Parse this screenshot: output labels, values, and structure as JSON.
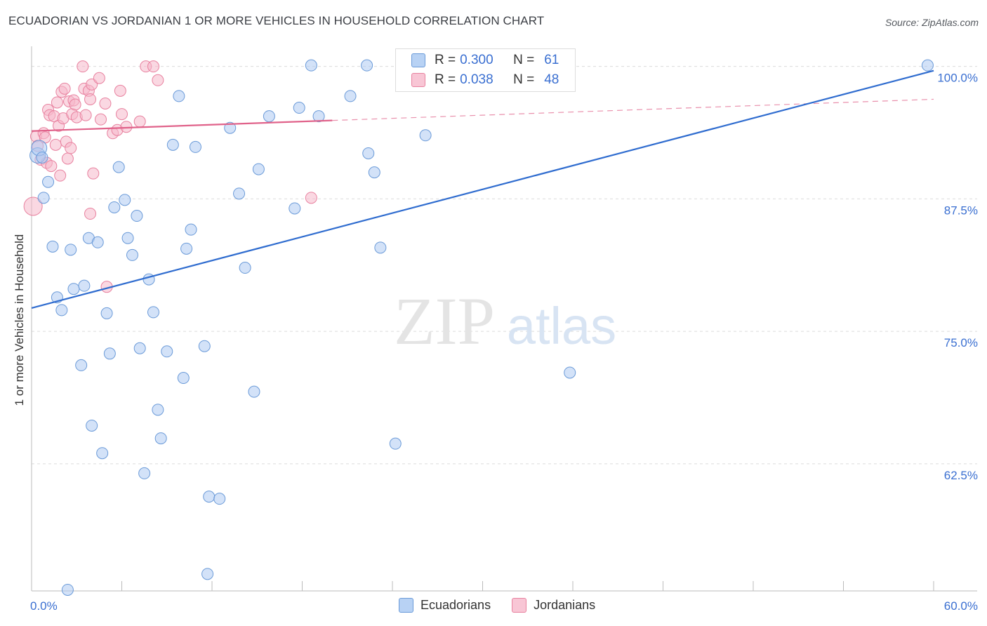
{
  "header": {
    "title": "ECUADORIAN VS JORDANIAN 1 OR MORE VEHICLES IN HOUSEHOLD CORRELATION CHART",
    "source": "Source: ZipAtlas.com"
  },
  "watermark": {
    "zip": "ZIP",
    "atlas": "atlas"
  },
  "legend": {
    "r_label": "R =",
    "n_label": "N =",
    "ecuadorians": {
      "r": "0.300",
      "n": "61"
    },
    "jordanians": {
      "r": "0.038",
      "n": "48"
    }
  },
  "bottom_legend": {
    "ecuadorians": "Ecuadorians",
    "jordanians": "Jordanians"
  },
  "colors": {
    "ecuadorians_fill": "#aecbf2",
    "ecuadorians_stroke": "#6a9ad8",
    "ecuadorians_line": "#2f6ccf",
    "jordanians_fill": "#f5b8cb",
    "jordanians_stroke": "#e8819f",
    "jordanians_line": "#e0628a",
    "tick_label": "#3a6fd1"
  },
  "chart_data": {
    "type": "scatter",
    "title": "ECUADORIAN VS JORDANIAN 1 OR MORE VEHICLES IN HOUSEHOLD CORRELATION CHART",
    "xlabel": "",
    "ylabel": "1 or more Vehicles in Household",
    "xlim": [
      0,
      60
    ],
    "ylim": [
      50.5,
      101.5
    ],
    "x_tick_labels": [
      "0.0%",
      "60.0%"
    ],
    "y_ticks": [
      62.5,
      75.0,
      87.5,
      100.0
    ],
    "y_tick_labels": [
      "62.5%",
      "75.0%",
      "87.5%",
      "100.0%"
    ],
    "series": [
      {
        "name": "Ecuadorians",
        "trend": {
          "x": [
            0,
            60
          ],
          "y": [
            77.2,
            99.6
          ]
        },
        "points": [
          {
            "x": 0.4,
            "y": 91.6
          },
          {
            "x": 0.5,
            "y": 92.3
          },
          {
            "x": 0.7,
            "y": 91.4
          },
          {
            "x": 0.8,
            "y": 87.6
          },
          {
            "x": 1.1,
            "y": 89.1
          },
          {
            "x": 1.4,
            "y": 83.0
          },
          {
            "x": 1.7,
            "y": 78.2
          },
          {
            "x": 2.0,
            "y": 77.0
          },
          {
            "x": 2.4,
            "y": 50.6
          },
          {
            "x": 2.6,
            "y": 82.7
          },
          {
            "x": 2.8,
            "y": 79.0
          },
          {
            "x": 3.3,
            "y": 71.8
          },
          {
            "x": 3.5,
            "y": 79.3
          },
          {
            "x": 3.8,
            "y": 83.8
          },
          {
            "x": 4.0,
            "y": 66.1
          },
          {
            "x": 4.4,
            "y": 83.4
          },
          {
            "x": 4.7,
            "y": 63.5
          },
          {
            "x": 5.0,
            "y": 76.7
          },
          {
            "x": 5.2,
            "y": 72.9
          },
          {
            "x": 5.5,
            "y": 86.7
          },
          {
            "x": 5.8,
            "y": 90.5
          },
          {
            "x": 6.2,
            "y": 87.4
          },
          {
            "x": 6.4,
            "y": 83.8
          },
          {
            "x": 6.7,
            "y": 82.2
          },
          {
            "x": 7.0,
            "y": 85.9
          },
          {
            "x": 7.2,
            "y": 73.4
          },
          {
            "x": 7.5,
            "y": 61.6
          },
          {
            "x": 7.8,
            "y": 79.9
          },
          {
            "x": 8.1,
            "y": 76.8
          },
          {
            "x": 8.4,
            "y": 67.6
          },
          {
            "x": 8.6,
            "y": 64.9
          },
          {
            "x": 9.0,
            "y": 73.1
          },
          {
            "x": 9.4,
            "y": 92.6
          },
          {
            "x": 9.8,
            "y": 97.2
          },
          {
            "x": 10.1,
            "y": 70.6
          },
          {
            "x": 10.3,
            "y": 82.8
          },
          {
            "x": 10.6,
            "y": 84.6
          },
          {
            "x": 10.9,
            "y": 92.4
          },
          {
            "x": 11.5,
            "y": 73.6
          },
          {
            "x": 11.8,
            "y": 59.4
          },
          {
            "x": 12.5,
            "y": 59.2
          },
          {
            "x": 11.7,
            "y": 52.1
          },
          {
            "x": 13.2,
            "y": 94.2
          },
          {
            "x": 13.8,
            "y": 88.0
          },
          {
            "x": 14.2,
            "y": 81.0
          },
          {
            "x": 14.8,
            "y": 69.3
          },
          {
            "x": 15.1,
            "y": 90.3
          },
          {
            "x": 15.8,
            "y": 95.3
          },
          {
            "x": 17.5,
            "y": 86.6
          },
          {
            "x": 17.8,
            "y": 96.1
          },
          {
            "x": 18.6,
            "y": 100.1
          },
          {
            "x": 19.1,
            "y": 95.3
          },
          {
            "x": 21.2,
            "y": 97.2
          },
          {
            "x": 22.4,
            "y": 91.8
          },
          {
            "x": 22.3,
            "y": 100.1
          },
          {
            "x": 22.8,
            "y": 90.0
          },
          {
            "x": 23.2,
            "y": 82.9
          },
          {
            "x": 24.2,
            "y": 64.4
          },
          {
            "x": 26.2,
            "y": 93.5
          },
          {
            "x": 35.8,
            "y": 71.1
          },
          {
            "x": 59.6,
            "y": 100.1
          }
        ]
      },
      {
        "name": "Jordanians",
        "trend": {
          "x": [
            0,
            20
          ],
          "y": [
            93.9,
            94.9
          ]
        },
        "trend_dashed": {
          "x": [
            20,
            60
          ],
          "y": [
            94.9,
            96.9
          ]
        },
        "points": [
          {
            "x": 0.1,
            "y": 86.8
          },
          {
            "x": 0.3,
            "y": 93.4
          },
          {
            "x": 0.4,
            "y": 92.5
          },
          {
            "x": 0.6,
            "y": 91.2
          },
          {
            "x": 0.8,
            "y": 93.7
          },
          {
            "x": 0.9,
            "y": 93.3
          },
          {
            "x": 1.0,
            "y": 90.9
          },
          {
            "x": 1.1,
            "y": 95.9
          },
          {
            "x": 1.2,
            "y": 95.4
          },
          {
            "x": 1.3,
            "y": 90.6
          },
          {
            "x": 1.5,
            "y": 95.3
          },
          {
            "x": 1.6,
            "y": 92.6
          },
          {
            "x": 1.7,
            "y": 96.6
          },
          {
            "x": 1.8,
            "y": 94.4
          },
          {
            "x": 1.9,
            "y": 89.7
          },
          {
            "x": 2.0,
            "y": 97.6
          },
          {
            "x": 2.1,
            "y": 95.1
          },
          {
            "x": 2.2,
            "y": 97.9
          },
          {
            "x": 2.3,
            "y": 92.9
          },
          {
            "x": 2.4,
            "y": 91.3
          },
          {
            "x": 2.5,
            "y": 96.7
          },
          {
            "x": 2.6,
            "y": 92.3
          },
          {
            "x": 2.7,
            "y": 95.5
          },
          {
            "x": 2.8,
            "y": 96.8
          },
          {
            "x": 2.9,
            "y": 96.4
          },
          {
            "x": 3.0,
            "y": 95.2
          },
          {
            "x": 3.4,
            "y": 100.0
          },
          {
            "x": 3.5,
            "y": 97.9
          },
          {
            "x": 3.6,
            "y": 95.4
          },
          {
            "x": 3.8,
            "y": 97.7
          },
          {
            "x": 3.9,
            "y": 96.9
          },
          {
            "x": 4.0,
            "y": 98.3
          },
          {
            "x": 4.1,
            "y": 89.9
          },
          {
            "x": 3.9,
            "y": 86.1
          },
          {
            "x": 4.5,
            "y": 98.9
          },
          {
            "x": 4.6,
            "y": 95.0
          },
          {
            "x": 4.9,
            "y": 96.5
          },
          {
            "x": 5.0,
            "y": 79.2
          },
          {
            "x": 5.4,
            "y": 93.7
          },
          {
            "x": 5.7,
            "y": 94.0
          },
          {
            "x": 5.9,
            "y": 97.7
          },
          {
            "x": 6.0,
            "y": 95.5
          },
          {
            "x": 6.3,
            "y": 94.3
          },
          {
            "x": 7.6,
            "y": 100.0
          },
          {
            "x": 8.1,
            "y": 100.0
          },
          {
            "x": 8.4,
            "y": 98.7
          },
          {
            "x": 18.6,
            "y": 87.6
          },
          {
            "x": 7.2,
            "y": 94.8
          }
        ]
      }
    ]
  }
}
